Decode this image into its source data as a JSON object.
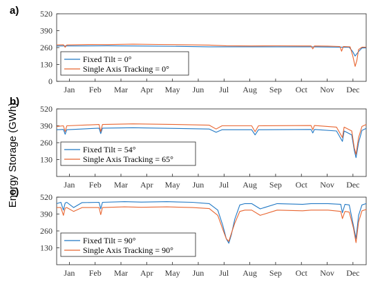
{
  "colors": {
    "fixed": "#1f77c4",
    "tracking": "#e8642f",
    "axis": "#222222"
  },
  "shared_ylabel": "Energy Storage (GWh)",
  "months": [
    "Jan",
    "Feb",
    "Mar",
    "Apr",
    "May",
    "Jun",
    "Jul",
    "Aug",
    "Sep",
    "Oct",
    "Nov",
    "Dec"
  ],
  "chart_data": [
    {
      "type": "line",
      "panel": "a)",
      "ylim": [
        0,
        520
      ],
      "yticks": [
        0,
        130,
        260,
        390,
        520
      ],
      "xlim": [
        0,
        365
      ],
      "series": [
        {
          "name": "Fixed Tilt = 0°",
          "color": "#1f77c4",
          "x": [
            0,
            60,
            120,
            180,
            300,
            345,
            349,
            352,
            356,
            360,
            365
          ],
          "y": [
            272,
            274,
            271,
            266,
            266,
            262,
            230,
            195,
            230,
            257,
            258
          ]
        },
        {
          "name": "Single Axis Tracking = 0°",
          "color": "#e8642f",
          "x": [
            0,
            8,
            10,
            12,
            40,
            60,
            90,
            120,
            150,
            180,
            200,
            230,
            260,
            290,
            300,
            302,
            304,
            320,
            334,
            336,
            338,
            346,
            349,
            352,
            354,
            356,
            360,
            365
          ],
          "y": [
            280,
            282,
            262,
            280,
            284,
            283,
            286,
            284,
            282,
            279,
            274,
            272,
            273,
            272,
            272,
            250,
            272,
            271,
            268,
            232,
            268,
            266,
            200,
            115,
            160,
            245,
            263,
            263
          ]
        }
      ]
    },
    {
      "type": "line",
      "panel": "b)",
      "ylim": [
        0,
        520
      ],
      "yticks": [
        130,
        260,
        390,
        520
      ],
      "xlim": [
        0,
        365
      ],
      "series": [
        {
          "name": "Fixed Tilt = 54°",
          "color": "#1f77c4",
          "x": [
            0,
            8,
            10,
            12,
            50,
            52,
            54,
            90,
            140,
            180,
            188,
            195,
            230,
            234,
            238,
            300,
            302,
            304,
            330,
            337,
            339,
            348,
            351,
            353,
            356,
            360,
            365
          ],
          "y": [
            360,
            362,
            325,
            360,
            372,
            330,
            372,
            375,
            370,
            365,
            340,
            360,
            360,
            320,
            360,
            362,
            335,
            362,
            350,
            270,
            350,
            320,
            200,
            145,
            260,
            355,
            370
          ]
        },
        {
          "name": "Single Axis Tracking = 65°",
          "color": "#e8642f",
          "x": [
            0,
            8,
            10,
            12,
            50,
            52,
            54,
            90,
            140,
            180,
            188,
            195,
            230,
            234,
            238,
            300,
            302,
            304,
            330,
            337,
            339,
            348,
            351,
            353,
            356,
            360,
            365
          ],
          "y": [
            385,
            390,
            345,
            390,
            400,
            345,
            400,
            405,
            400,
            395,
            365,
            390,
            390,
            345,
            390,
            392,
            360,
            392,
            380,
            300,
            380,
            350,
            220,
            170,
            300,
            385,
            400
          ]
        }
      ]
    },
    {
      "type": "line",
      "panel": "c)",
      "ylim": [
        0,
        520
      ],
      "yticks": [
        130,
        260,
        390,
        520
      ],
      "xlim": [
        0,
        365
      ],
      "series": [
        {
          "name": "Fixed Tilt = 90°",
          "color": "#1f77c4",
          "x": [
            0,
            5,
            8,
            10,
            12,
            20,
            30,
            50,
            52,
            54,
            80,
            100,
            130,
            160,
            180,
            190,
            196,
            200,
            203,
            206,
            210,
            216,
            222,
            230,
            240,
            260,
            290,
            300,
            320,
            335,
            337,
            340,
            345,
            350,
            353,
            356,
            360,
            365
          ],
          "y": [
            470,
            480,
            420,
            475,
            480,
            440,
            478,
            480,
            430,
            480,
            485,
            482,
            485,
            480,
            470,
            420,
            300,
            200,
            165,
            230,
            350,
            460,
            470,
            470,
            430,
            470,
            465,
            470,
            470,
            465,
            400,
            465,
            460,
            300,
            200,
            380,
            460,
            470
          ]
        },
        {
          "name": "Single Axis Tracking = 90°",
          "color": "#e8642f",
          "x": [
            0,
            5,
            8,
            10,
            12,
            20,
            30,
            50,
            52,
            54,
            80,
            100,
            130,
            160,
            180,
            190,
            196,
            200,
            203,
            206,
            210,
            216,
            222,
            230,
            240,
            260,
            290,
            300,
            320,
            335,
            337,
            340,
            345,
            350,
            353,
            356,
            360,
            365
          ],
          "y": [
            440,
            440,
            380,
            435,
            440,
            410,
            440,
            440,
            385,
            440,
            445,
            442,
            445,
            440,
            432,
            380,
            270,
            200,
            180,
            240,
            320,
            410,
            420,
            420,
            380,
            420,
            415,
            420,
            420,
            410,
            355,
            410,
            405,
            280,
            170,
            330,
            415,
            425
          ]
        }
      ]
    }
  ]
}
